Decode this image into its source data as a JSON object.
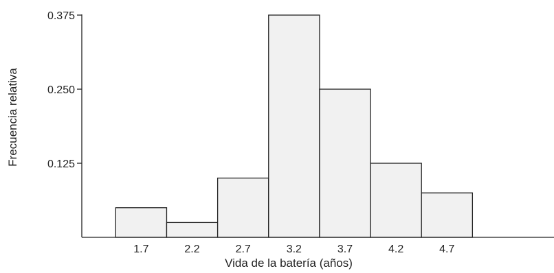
{
  "chart_data": {
    "type": "bar",
    "title": "",
    "xlabel": "Vida de la batería (años)",
    "ylabel": "Frecuencia relativa",
    "categories": [
      "1.7",
      "2.2",
      "2.7",
      "3.2",
      "3.7",
      "4.2",
      "4.7"
    ],
    "values": [
      0.05,
      0.025,
      0.1,
      0.375,
      0.25,
      0.125,
      0.075
    ],
    "bin_width": 0.5,
    "xlim": [
      1.05,
      5.75
    ],
    "ylim": [
      0,
      0.375
    ],
    "y_ticks": [
      "0.125",
      "0.250",
      "0.375"
    ],
    "y_tick_values": [
      0.125,
      0.25,
      0.375
    ],
    "grid": false,
    "bar_fill": "#f1f1f1",
    "bar_stroke": "#222222"
  }
}
